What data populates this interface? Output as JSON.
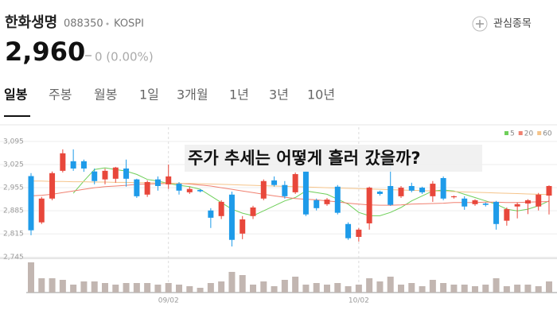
{
  "header": {
    "title": "한화생명",
    "code": "088350",
    "market": "KOSPI",
    "price": "2,960",
    "change": "0 (0.00%)",
    "watchlist": "관심종목"
  },
  "tabs": [
    "일봉",
    "주봉",
    "월봉",
    "1일",
    "3개월",
    "1년",
    "3년",
    "10년"
  ],
  "annotation": "주가 추세는 어떻게 흘러 갔을까?",
  "chart_data": {
    "type": "candlestick",
    "categories": [
      null,
      null,
      null,
      null,
      null,
      null,
      null,
      null,
      null,
      null,
      null,
      null,
      null,
      "09/02",
      null,
      null,
      null,
      null,
      null,
      null,
      null,
      null,
      null,
      null,
      null,
      null,
      null,
      null,
      null,
      null,
      null,
      "10/02",
      null,
      null,
      null,
      null,
      null,
      null,
      null,
      null,
      null,
      null,
      null,
      null,
      null,
      null,
      null,
      null,
      null,
      null
    ],
    "open": [
      2990,
      2850,
      2922,
      3006,
      3035,
      3035,
      3004,
      2980,
      2982,
      3013,
      2980,
      2934,
      2980,
      2965,
      2967,
      2941,
      2948,
      2886,
      2869,
      2934,
      2816,
      2869,
      2922,
      2977,
      2963,
      2941,
      3004,
      2917,
      2905,
      2958,
      2845,
      2806,
      2847,
      2943,
      2960,
      2929,
      2960,
      2955,
      2929,
      2984,
      2926,
      2922,
      2905,
      2907,
      2912,
      2855,
      2898,
      2907,
      2898,
      2931
    ],
    "high": [
      2999,
      2927,
      3004,
      3071,
      3071,
      3040,
      3013,
      3013,
      3018,
      3040,
      2982,
      2977,
      2989,
      3025,
      2972,
      2958,
      2951,
      2893,
      2917,
      2943,
      2869,
      2900,
      2980,
      2989,
      2975,
      3001,
      3006,
      2922,
      2924,
      2963,
      2850,
      2833,
      2958,
      2946,
      3030,
      2960,
      2970,
      2958,
      2975,
      2989,
      2931,
      2929,
      2920,
      2910,
      2915,
      2895,
      2910,
      2920,
      2939,
      2962
    ],
    "low": [
      2811,
      2845,
      2917,
      3001,
      3006,
      3003,
      2965,
      2965,
      2970,
      2958,
      2924,
      2927,
      2946,
      2951,
      2934,
      2936,
      2941,
      2833,
      2860,
      2777,
      2799,
      2860,
      2917,
      2958,
      2922,
      2936,
      2869,
      2886,
      2900,
      2874,
      2797,
      2792,
      2828,
      2931,
      2900,
      2924,
      2941,
      2936,
      2912,
      2917,
      2922,
      2888,
      2900,
      2898,
      2828,
      2840,
      2862,
      2875,
      2886,
      2874
    ],
    "close": [
      2826,
      2922,
      2999,
      3059,
      3013,
      3013,
      2975,
      3006,
      3016,
      2982,
      2929,
      2972,
      2960,
      2989,
      2946,
      2951,
      2944,
      2864,
      2912,
      2797,
      2859,
      2895,
      2975,
      2963,
      2929,
      2996,
      2874,
      2893,
      2919,
      2879,
      2802,
      2828,
      2955,
      2936,
      2903,
      2955,
      2946,
      2941,
      2967,
      2922,
      2929,
      2898,
      2917,
      2903,
      2845,
      2890,
      2905,
      2917,
      2934,
      2960
    ],
    "up_color": "#e8473b",
    "down_color": "#1e9be9",
    "series": [
      {
        "name": "5",
        "color": "#6fcf5a",
        "values": [
          null,
          null,
          null,
          null,
          2938,
          2975,
          3010,
          3015,
          3010,
          3005,
          2995,
          2980,
          2975,
          2968,
          2962,
          2958,
          2950,
          2930,
          2910,
          2890,
          2878,
          2870,
          2885,
          2900,
          2915,
          2925,
          2945,
          2940,
          2935,
          2920,
          2905,
          2880,
          2870,
          2870,
          2880,
          2895,
          2915,
          2930,
          2945,
          2948,
          2945,
          2935,
          2925,
          2915,
          2905,
          2890,
          2885,
          2890,
          2900,
          2915
        ]
      },
      {
        "name": "20",
        "color": "#f08070",
        "values": [
          2930,
          2932,
          2935,
          2940,
          2945,
          2950,
          2955,
          2958,
          2960,
          2962,
          2965,
          2966,
          2967,
          2968,
          2968,
          2966,
          2963,
          2960,
          2955,
          2950,
          2945,
          2940,
          2935,
          2930,
          2926,
          2922,
          2920,
          2918,
          2915,
          2912,
          2908,
          2905,
          2903,
          2902,
          2902,
          2903,
          2905,
          2906,
          2907,
          2908,
          2910,
          2910,
          2910,
          2911,
          2911,
          2910,
          2910,
          2911,
          2912,
          2913
        ]
      },
      {
        "name": "60",
        "color": "#f5c48a",
        "values": [
          2975,
          2975,
          2974,
          2974,
          2973,
          2973,
          2972,
          2972,
          2971,
          2971,
          2970,
          2970,
          2969,
          2969,
          2968,
          2968,
          2967,
          2966,
          2965,
          2964,
          2963,
          2962,
          2961,
          2960,
          2959,
          2958,
          2957,
          2956,
          2955,
          2954,
          2953,
          2952,
          2951,
          2950,
          2949,
          2948,
          2947,
          2946,
          2945,
          2944,
          2943,
          2942,
          2941,
          2940,
          2939,
          2938,
          2937,
          2936,
          2935,
          2934
        ]
      }
    ],
    "ylim": [
      2741,
      3138
    ],
    "yticks": [
      {
        "value": 3095,
        "label": "3,095"
      },
      {
        "value": 3025,
        "label": "3,025"
      },
      {
        "value": 2955,
        "label": "2,955"
      },
      {
        "value": 2885,
        "label": "2,885"
      },
      {
        "value": 2815,
        "label": "2,815"
      },
      {
        "value": 2745,
        "label": "2,745"
      }
    ],
    "grid": true,
    "volume": [
      38,
      18,
      18,
      16,
      10,
      14,
      14,
      12,
      10,
      12,
      12,
      12,
      10,
      12,
      10,
      8,
      6,
      12,
      14,
      26,
      22,
      10,
      14,
      8,
      16,
      20,
      10,
      12,
      10,
      12,
      8,
      10,
      18,
      14,
      20,
      10,
      12,
      8,
      16,
      12,
      10,
      10,
      8,
      10,
      18,
      8,
      10,
      10,
      8,
      14
    ],
    "volume_color": "#c2b6b1",
    "volume_ylim": [
      0,
      40
    ]
  }
}
